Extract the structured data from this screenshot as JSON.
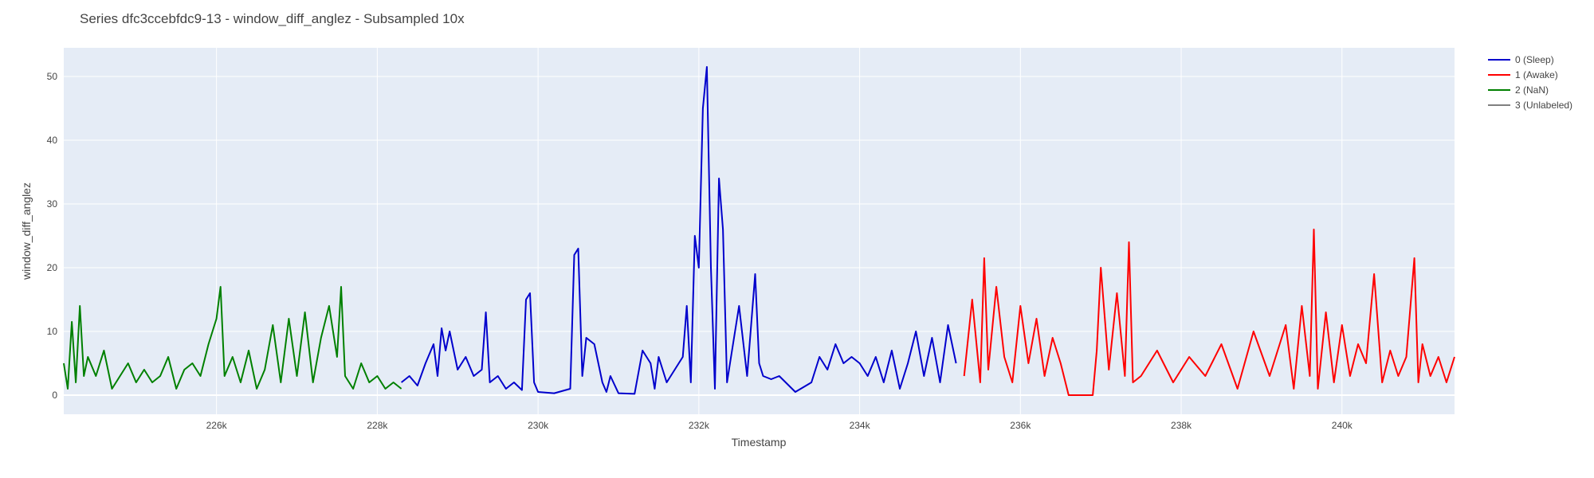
{
  "chart_data": {
    "type": "line",
    "title": "Series dfc3ccebfdc9-13 - window_diff_anglez - Subsampled 10x",
    "xlabel": "Timestamp",
    "ylabel": "window_diff_anglez",
    "xlim": [
      224100,
      241400
    ],
    "ylim": [
      -3,
      54.5
    ],
    "x_ticks": [
      226000,
      228000,
      230000,
      232000,
      234000,
      236000,
      238000,
      240000
    ],
    "x_tick_labels": [
      "226k",
      "228k",
      "230k",
      "232k",
      "234k",
      "236k",
      "238k",
      "240k"
    ],
    "y_ticks": [
      0,
      10,
      20,
      30,
      40,
      50
    ],
    "y_tick_labels": [
      "0",
      "10",
      "20",
      "30",
      "40",
      "50"
    ],
    "grid": true,
    "plot_background": "#e5ecf6",
    "legend_position": "top-right",
    "series": [
      {
        "name": "0 (Sleep)",
        "color": "#0000cc",
        "x": [
          228300,
          228400,
          228500,
          228600,
          228700,
          228750,
          228800,
          228850,
          228900,
          229000,
          229100,
          229200,
          229300,
          229350,
          229400,
          229500,
          229600,
          229700,
          229800,
          229850,
          229900,
          229950,
          230000,
          230200,
          230400,
          230450,
          230500,
          230550,
          230600,
          230700,
          230800,
          230850,
          230900,
          231000,
          231200,
          231300,
          231400,
          231450,
          231500,
          231600,
          231700,
          231800,
          231850,
          231900,
          231950,
          232000,
          232050,
          232100,
          232150,
          232200,
          232250,
          232300,
          232350,
          232400,
          232500,
          232600,
          232700,
          232750,
          232800,
          232900,
          233000,
          233200,
          233400,
          233500,
          233600,
          233700,
          233800,
          233900,
          234000,
          234100,
          234200,
          234300,
          234400,
          234500,
          234600,
          234700,
          234800,
          234900,
          235000,
          235100,
          235200
        ],
        "y": [
          2,
          3,
          1.5,
          5,
          8,
          3,
          10.5,
          7,
          10,
          4,
          6,
          3,
          4,
          13,
          2,
          3,
          1,
          2,
          0.8,
          15,
          16,
          2,
          0.5,
          0.3,
          1,
          22,
          23,
          3,
          9,
          8,
          2,
          0.5,
          3,
          0.3,
          0.2,
          7,
          5,
          1,
          6,
          2,
          4,
          6,
          14,
          2,
          25,
          20,
          45,
          51.5,
          20,
          1,
          34,
          26,
          2,
          6,
          14,
          3,
          19,
          5,
          3,
          2.5,
          3,
          0.5,
          2,
          6,
          4,
          8,
          5,
          6,
          5,
          3,
          6,
          2,
          7,
          1,
          5,
          10,
          3,
          9,
          2,
          11,
          5
        ]
      },
      {
        "name": "1 (Awake)",
        "color": "#ff0000",
        "x": [
          235300,
          235400,
          235500,
          235550,
          235600,
          235700,
          235800,
          235900,
          236000,
          236100,
          236200,
          236300,
          236400,
          236500,
          236600,
          236700,
          236900,
          236950,
          237000,
          237100,
          237200,
          237300,
          237350,
          237400,
          237500,
          237700,
          237900,
          238100,
          238300,
          238500,
          238700,
          238900,
          239100,
          239300,
          239400,
          239500,
          239600,
          239650,
          239700,
          239800,
          239900,
          240000,
          240100,
          240200,
          240300,
          240400,
          240500,
          240600,
          240700,
          240800,
          240900,
          240950,
          241000,
          241100,
          241200,
          241300,
          241400
        ],
        "y": [
          3,
          15,
          2,
          21.5,
          4,
          17,
          6,
          2,
          14,
          5,
          12,
          3,
          9,
          5,
          0,
          0,
          0,
          7,
          20,
          4,
          16,
          3,
          24,
          2,
          3,
          7,
          2,
          6,
          3,
          8,
          1,
          10,
          3,
          11,
          1,
          14,
          3,
          26,
          1,
          13,
          2,
          11,
          3,
          8,
          5,
          19,
          2,
          7,
          3,
          6,
          21.5,
          2,
          8,
          3,
          6,
          2,
          6
        ]
      },
      {
        "name": "2 (NaN)",
        "color": "#008000",
        "x": [
          224100,
          224150,
          224200,
          224250,
          224300,
          224350,
          224400,
          224500,
          224600,
          224700,
          224800,
          224900,
          225000,
          225100,
          225200,
          225300,
          225400,
          225500,
          225600,
          225700,
          225800,
          225900,
          226000,
          226050,
          226100,
          226200,
          226300,
          226400,
          226500,
          226600,
          226700,
          226800,
          226900,
          227000,
          227100,
          227200,
          227300,
          227400,
          227500,
          227550,
          227600,
          227700,
          227800,
          227900,
          228000,
          228100,
          228200,
          228300
        ],
        "y": [
          5,
          1,
          11.5,
          2,
          14,
          3,
          6,
          3,
          7,
          1,
          3,
          5,
          2,
          4,
          2,
          3,
          6,
          1,
          4,
          5,
          3,
          8,
          12,
          17,
          3,
          6,
          2,
          7,
          1,
          4,
          11,
          2,
          12,
          3,
          13,
          2,
          9,
          14,
          6,
          17,
          3,
          1,
          5,
          2,
          3,
          1,
          2,
          1
        ]
      },
      {
        "name": "3 (Unlabeled)",
        "color": "#808080",
        "x": [],
        "y": []
      }
    ]
  }
}
